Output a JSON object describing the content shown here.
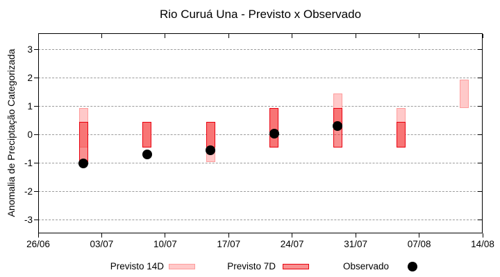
{
  "title": "Rio Curuá Una - Previsto x Observado",
  "y_axis": {
    "label": "Anomalia de Preciptação Categorizada",
    "tick_labels": [
      "3",
      "2",
      "1",
      "0",
      "-1",
      "-2",
      "-3"
    ],
    "tick_values": [
      3,
      2,
      1,
      0,
      -1,
      -2,
      -3
    ]
  },
  "x_axis": {
    "ticks": [
      "26/06",
      "03/07",
      "10/07",
      "17/07",
      "24/07",
      "31/07",
      "07/08",
      "14/08"
    ]
  },
  "legend": {
    "previsto_14d": "Previsto 14D",
    "previsto_7d": "Previsto 7D",
    "observado": "Observado"
  },
  "colors": {
    "previsto_14d_fill": "#FFC9C9",
    "previsto_14d_border": "#FF9C9C",
    "previsto_7d_fill": "rgba(241,33,33,0.5)",
    "previsto_7d_border": "#E8000E",
    "observado": "#000000",
    "grid": "#9a9a9a"
  },
  "chart_data": {
    "type": "ranged-bar-scatter",
    "title": "Rio Curuá Una - Previsto x Observado",
    "ylabel": "Anomalia de Preciptação Categorizada",
    "ylim": [
      -3.5,
      3.58
    ],
    "x_span_days": 49,
    "x_tick_day_offsets": [
      0,
      7,
      14,
      21,
      28,
      35,
      42,
      49
    ],
    "point_day_offsets": [
      5,
      12,
      19,
      26,
      33,
      40,
      47
    ],
    "grid": "dashed horizontal at integer values",
    "legend_position": "below plot",
    "points": [
      {
        "date": "01/07",
        "previsto_14d": [
          -0.45,
          0.95
        ],
        "previsto_7d": [
          -0.95,
          0.45
        ],
        "observado": -1.0
      },
      {
        "date": "08/07",
        "previsto_14d": [
          -0.45,
          0.45
        ],
        "previsto_7d": [
          -0.45,
          0.45
        ],
        "observado": -0.7
      },
      {
        "date": "15/07",
        "previsto_14d": [
          -0.95,
          0.45
        ],
        "previsto_7d": [
          -0.45,
          0.45
        ],
        "observado": -0.55
      },
      {
        "date": "22/07",
        "previsto_14d": [
          -0.45,
          0.95
        ],
        "previsto_7d": [
          -0.45,
          0.95
        ],
        "observado": 0.05
      },
      {
        "date": "29/07",
        "previsto_14d": [
          0.45,
          1.45
        ],
        "previsto_7d": [
          -0.45,
          0.95
        ],
        "observado": 0.3
      },
      {
        "date": "05/08",
        "previsto_14d": [
          -0.45,
          0.95
        ],
        "previsto_7d": [
          -0.45,
          0.45
        ],
        "observado": null
      },
      {
        "date": "12/08",
        "previsto_14d": [
          0.95,
          1.95
        ],
        "previsto_7d": null,
        "observado": null
      }
    ]
  }
}
